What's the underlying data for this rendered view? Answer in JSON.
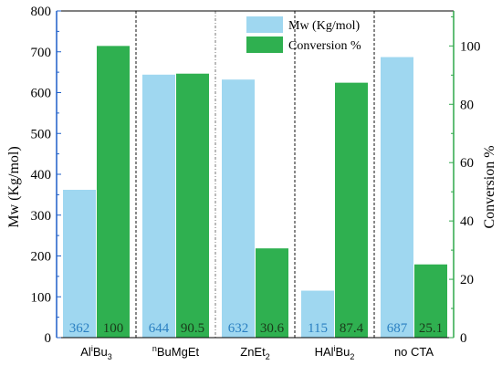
{
  "chart_data": {
    "type": "bar",
    "categories": [
      "AliBu3",
      "nBuMgEt",
      "ZnEt2",
      "HAliBu2",
      "no CTA"
    ],
    "category_labels": [
      {
        "base": "Al",
        "sup": "i",
        "rest": "Bu",
        "sub": "3"
      },
      {
        "base": "",
        "sup": "n",
        "rest": "BuMgEt",
        "sub": ""
      },
      {
        "base": "ZnEt",
        "sup": "",
        "rest": "",
        "sub": "2"
      },
      {
        "base": "HAl",
        "sup": "i",
        "rest": "Bu",
        "sub": "2"
      },
      {
        "base": "no CTA",
        "sup": "",
        "rest": "",
        "sub": ""
      }
    ],
    "series": [
      {
        "name": "Mw (Kg/mol)",
        "axis": "left",
        "color": "#9fd7f0",
        "label_color": "#2a7fc1",
        "values": [
          362,
          644,
          632,
          115,
          687
        ],
        "labels": [
          "362",
          "644",
          "632",
          "115",
          "687"
        ]
      },
      {
        "name": "Conversion %",
        "axis": "right",
        "color": "#2fb050",
        "label_color": "#1a3a1a",
        "values": [
          100,
          90.5,
          30.6,
          87.4,
          25.1
        ],
        "labels": [
          "100",
          "90.5",
          "30.6",
          "87.4",
          "25.1"
        ]
      }
    ],
    "ylabel": "Mw (Kg/mol)",
    "y2label": "Conversion %",
    "ylim": [
      0,
      800
    ],
    "y2lim": [
      0,
      112
    ],
    "yticks": [
      0,
      100,
      200,
      300,
      400,
      500,
      600,
      700,
      800
    ],
    "y2ticks": [
      0,
      20,
      40,
      60,
      80,
      100
    ],
    "left_axis_color": "#1f5fc8",
    "right_axis_color": "#2fa84a",
    "legend_position": "top-center",
    "grid": false
  }
}
